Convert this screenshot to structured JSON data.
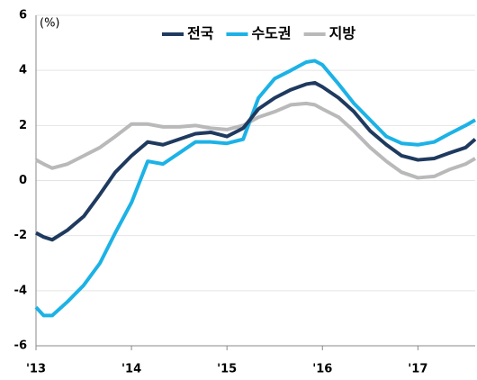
{
  "chart_data": {
    "type": "line",
    "unit_label": "(%)",
    "x": [
      2013,
      2013.08,
      2013.17,
      2013.33,
      2013.5,
      2013.67,
      2013.83,
      2014,
      2014.17,
      2014.33,
      2014.5,
      2014.67,
      2014.83,
      2015,
      2015.17,
      2015.33,
      2015.5,
      2015.67,
      2015.83,
      2015.92,
      2016,
      2016.17,
      2016.33,
      2016.5,
      2016.67,
      2016.83,
      2017,
      2017.17,
      2017.33,
      2017.5,
      2017.6
    ],
    "series": [
      {
        "name": "전국",
        "color": "#1f3a5f",
        "values": [
          -1.9,
          -2.05,
          -2.15,
          -1.8,
          -1.3,
          -0.5,
          0.3,
          0.9,
          1.4,
          1.3,
          1.5,
          1.7,
          1.75,
          1.6,
          1.9,
          2.6,
          3.0,
          3.3,
          3.5,
          3.55,
          3.4,
          3.0,
          2.5,
          1.8,
          1.3,
          0.9,
          0.75,
          0.8,
          1.0,
          1.2,
          1.5
        ]
      },
      {
        "name": "수도권",
        "color": "#1cb2e6",
        "values": [
          -4.6,
          -4.9,
          -4.9,
          -4.4,
          -3.8,
          -3.0,
          -1.9,
          -0.8,
          0.7,
          0.6,
          1.0,
          1.4,
          1.4,
          1.35,
          1.5,
          3.0,
          3.7,
          4.0,
          4.3,
          4.35,
          4.2,
          3.5,
          2.8,
          2.2,
          1.6,
          1.35,
          1.3,
          1.4,
          1.7,
          2.0,
          2.2
        ]
      },
      {
        "name": "지방",
        "color": "#b9b9b9",
        "values": [
          0.75,
          0.6,
          0.45,
          0.6,
          0.9,
          1.2,
          1.6,
          2.05,
          2.05,
          1.95,
          1.95,
          2.0,
          1.9,
          1.85,
          2.0,
          2.3,
          2.5,
          2.75,
          2.8,
          2.75,
          2.6,
          2.3,
          1.8,
          1.2,
          0.7,
          0.3,
          0.1,
          0.15,
          0.4,
          0.6,
          0.8
        ]
      }
    ],
    "xlim": [
      2013,
      2017.6
    ],
    "xticks": [
      {
        "value": 2013,
        "label": "'13"
      },
      {
        "value": 2014,
        "label": "'14"
      },
      {
        "value": 2015,
        "label": "'15"
      },
      {
        "value": 2016,
        "label": "'16"
      },
      {
        "value": 2017,
        "label": "'17"
      }
    ],
    "ylim": [
      -6,
      6
    ],
    "yticks": [
      -6,
      -4,
      -2,
      0,
      2,
      4,
      6
    ],
    "grid": true
  }
}
